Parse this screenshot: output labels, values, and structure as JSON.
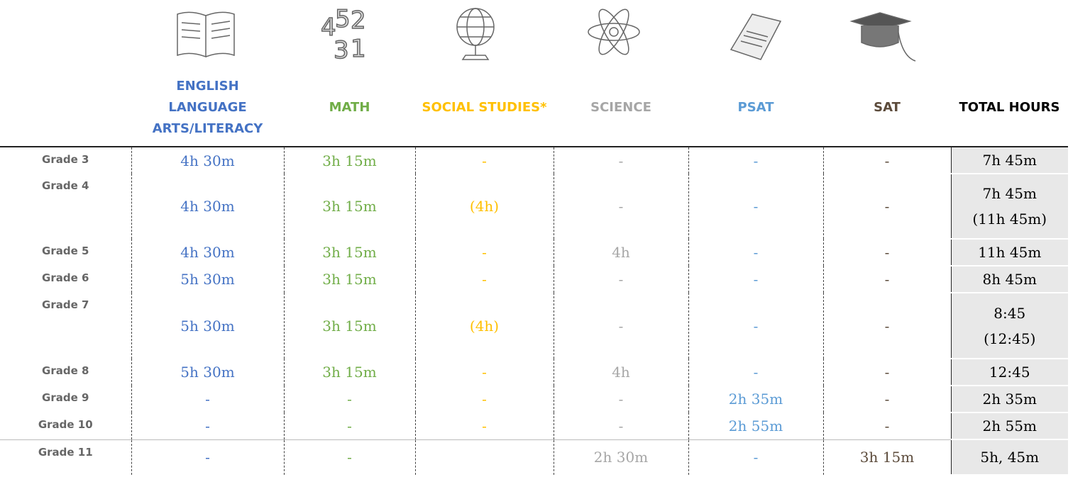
{
  "columns": [
    {
      "label": "ENGLISH LANGUAGE ARTS/LITERACY",
      "color": "#4472c4"
    },
    {
      "label": "MATH",
      "color": "#70ad47"
    },
    {
      "label": "SOCIAL STUDIES*",
      "color": "#ffc000"
    },
    {
      "label": "SCIENCE",
      "color": "#a6a6a6"
    },
    {
      "label": "PSAT",
      "color": "#5b9bd5"
    },
    {
      "label": "SAT",
      "color": "#5c4b3b"
    },
    {
      "label": "TOTAL HOURS",
      "color": "#000000"
    }
  ],
  "rows": [
    {
      "grade": "Grade 3",
      "cells": [
        "4h 30m",
        "3h 15m",
        "-",
        "-",
        "-",
        "-",
        "7h 45m"
      ]
    },
    {
      "grade": "Grade 4",
      "cells": [
        "4h 30m",
        "3h 15m",
        "(4h)",
        "-",
        "-",
        "-",
        [
          "7h 45m",
          "(11h 45m)"
        ]
      ]
    },
    {
      "grade": "Grade 5",
      "cells": [
        "4h 30m",
        "3h 15m",
        "-",
        "4h",
        "-",
        "-",
        "11h 45m"
      ]
    },
    {
      "grade": "Grade 6",
      "cells": [
        "5h 30m",
        "3h 15m",
        "-",
        "-",
        "-",
        "-",
        "8h 45m"
      ]
    },
    {
      "grade": "Grade 7",
      "cells": [
        "5h 30m",
        "3h 15m",
        "(4h)",
        "-",
        "-",
        "-",
        [
          "8:45",
          "(12:45)"
        ]
      ]
    },
    {
      "grade": "Grade 8",
      "cells": [
        "5h 30m",
        "3h 15m",
        "-",
        "4h",
        "-",
        "-",
        "12:45"
      ]
    },
    {
      "grade": "Grade 9",
      "cells": [
        "-",
        "-",
        "-",
        "-",
        "2h 35m",
        "-",
        "2h 35m"
      ]
    },
    {
      "grade": "Grade 10",
      "cells": [
        "-",
        "-",
        "-",
        "-",
        "2h 55m",
        "-",
        "2h 55m"
      ]
    },
    {
      "grade": "Grade 11",
      "cells": [
        "-",
        "-",
        null,
        "2h 30m",
        "-",
        "3h 15m",
        "5h, 45m"
      ]
    }
  ]
}
